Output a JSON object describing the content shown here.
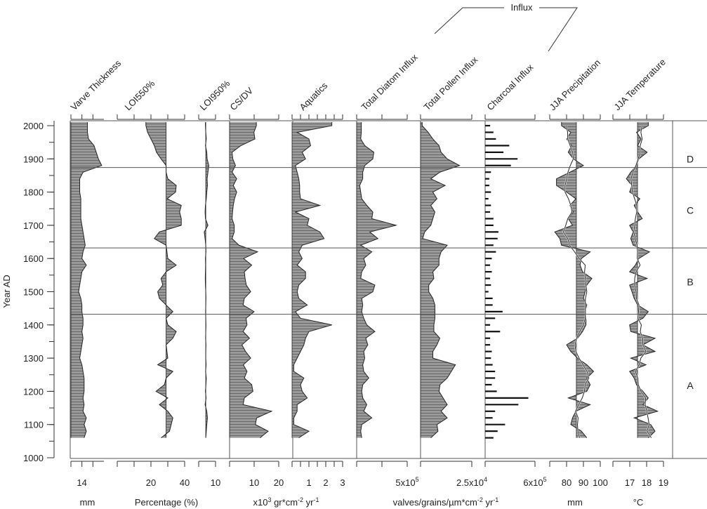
{
  "chart_data": {
    "type": "stratigraphic",
    "y_axis": {
      "label": "Year AD",
      "range": [
        1000,
        2000
      ],
      "ticks": [
        1000,
        1100,
        1200,
        1300,
        1400,
        1500,
        1600,
        1700,
        1800,
        1900,
        2000
      ],
      "minor_step": 50
    },
    "group_label": "Influx",
    "zones": {
      "boundaries": [
        1874,
        1632,
        1432
      ],
      "labels": [
        {
          "name": "D",
          "center": 1900
        },
        {
          "name": "C",
          "center": 1745
        },
        {
          "name": "B",
          "center": 1530
        },
        {
          "name": "A",
          "center": 1218
        }
      ]
    },
    "years": [
      2000,
      1980,
      1960,
      1940,
      1920,
      1900,
      1880,
      1860,
      1840,
      1820,
      1800,
      1780,
      1760,
      1740,
      1720,
      1700,
      1680,
      1660,
      1640,
      1620,
      1600,
      1580,
      1560,
      1540,
      1520,
      1500,
      1480,
      1460,
      1440,
      1420,
      1400,
      1380,
      1360,
      1340,
      1320,
      1300,
      1280,
      1260,
      1240,
      1220,
      1200,
      1180,
      1160,
      1140,
      1120,
      1100,
      1080,
      1060
    ],
    "panels": [
      {
        "title": "Varve Thickness",
        "style": "fill",
        "xlim": [
          13,
          16
        ],
        "ticks": [
          13,
          14,
          15
        ],
        "tick_labels": [
          {
            "value": 14,
            "text": "14"
          }
        ],
        "values": [
          14.5,
          14.5,
          14.6,
          15.1,
          15.3,
          15.5,
          15.8,
          14.1,
          13.8,
          13.8,
          13.8,
          13.9,
          13.9,
          13.9,
          13.9,
          14.0,
          14.1,
          14.2,
          14.3,
          14.1,
          14.0,
          14.4,
          14.0,
          13.9,
          13.8,
          13.7,
          13.9,
          14.0,
          14.0,
          14.1,
          14.1,
          14.0,
          14.1,
          14.0,
          13.9,
          13.8,
          14.0,
          14.1,
          14.2,
          14.2,
          14.2,
          14.1,
          14.2,
          14.1,
          14.4,
          14.2,
          14.4,
          14.2
        ]
      },
      {
        "title": "LOI550%",
        "style": "fill",
        "xlim": [
          0,
          40
        ],
        "baseline": 29,
        "ticks": [
          0,
          10,
          20,
          30,
          40
        ],
        "tick_labels": [
          {
            "value": 20,
            "text": "20"
          },
          {
            "value": 40,
            "text": "40"
          }
        ],
        "values": [
          17,
          18,
          20,
          22,
          23.3,
          26,
          29,
          29,
          30,
          35,
          34.6,
          29.6,
          38,
          37,
          38,
          38,
          25,
          22,
          29,
          29.5,
          30,
          35,
          29,
          26,
          27,
          24,
          25,
          29,
          33,
          29,
          30,
          35,
          33,
          29,
          29.5,
          30,
          24,
          33,
          29,
          28,
          23,
          30,
          25,
          30,
          33,
          32,
          31,
          26
        ]
      },
      {
        "title": "LOI950%",
        "style": "fill",
        "xlim": [
          0,
          10
        ],
        "baseline": 4.2,
        "ticks": [
          0,
          10
        ],
        "tick_labels": [
          {
            "value": 10,
            "text": "10"
          }
        ],
        "values": [
          4.0,
          4.2,
          4.5,
          4.0,
          4.8,
          5.0,
          6.0,
          5.5,
          5.0,
          5.2,
          4.8,
          4.5,
          4.0,
          3.8,
          4.0,
          5.5,
          3.3,
          3.8,
          4.2,
          4.3,
          4.0,
          4.1,
          4.0,
          3.9,
          4.0,
          4.2,
          4.3,
          4.2,
          4.1,
          4.2,
          4.3,
          4.2,
          4.1,
          4.3,
          4.2,
          4.2,
          4.4,
          4.1,
          4.5,
          4.3,
          4.0,
          4.4,
          3.8,
          4.8,
          5.2,
          4.8,
          4.5,
          4.2
        ]
      },
      {
        "title": "CS/DV",
        "style": "fill",
        "xlim": [
          0,
          20
        ],
        "ticks": [
          0,
          10,
          20
        ],
        "tick_labels": [
          {
            "value": 10,
            "text": "10"
          },
          {
            "value": 20,
            "text": "20"
          }
        ],
        "values": [
          10.9,
          9.9,
          10.3,
          4.6,
          1.0,
          1.3,
          2.4,
          1.0,
          2.9,
          1.5,
          2.9,
          2.0,
          1.5,
          1.2,
          1.0,
          1.9,
          1.9,
          1.0,
          3.8,
          11.4,
          5.7,
          9.0,
          6.0,
          6.3,
          6.8,
          8.6,
          6.0,
          5.5,
          10.0,
          6.7,
          7.1,
          5.5,
          8.1,
          5.0,
          6.5,
          8.6,
          5.6,
          7.1,
          6.0,
          9.0,
          9.5,
          6.0,
          5.5,
          17.1,
          11.0,
          10.5,
          15.7,
          12.4
        ]
      },
      {
        "title": "Aquatics",
        "style": "fill",
        "xlim": [
          0,
          3
        ],
        "ticks": [
          0,
          0.5,
          1,
          1.5,
          2,
          2.5,
          3
        ],
        "tick_labels": [
          {
            "value": 1,
            "text": "1"
          },
          {
            "value": 2,
            "text": "2"
          },
          {
            "value": 3,
            "text": "3"
          }
        ],
        "values": [
          2.36,
          0.3,
          1.0,
          1.1,
          0.6,
          0.8,
          0.2,
          0.3,
          0.4,
          0.45,
          0.45,
          0.5,
          1.65,
          0.2,
          1.0,
          0.9,
          1.65,
          1.9,
          0.6,
          0.4,
          0.6,
          0.3,
          0.8,
          0.8,
          0.4,
          0.3,
          0.4,
          0.9,
          0.2,
          0.5,
          2.36,
          1.0,
          0.8,
          0.7,
          0.5,
          0.3,
          0.1,
          0.1,
          0.7,
          0.5,
          0.6,
          0.9,
          0.3,
          0.3,
          0.1,
          0.1,
          1.0,
          0.4
        ]
      },
      {
        "title": "Total Diatom Influx",
        "style": "fill",
        "xlim": [
          0,
          500000
        ],
        "ticks": [
          0,
          250000,
          500000
        ],
        "tick_labels": [
          {
            "value": 500000,
            "text": "5x10",
            "sup": "5"
          }
        ],
        "values": [
          46000,
          46000,
          40000,
          80000,
          170000,
          160000,
          80000,
          60000,
          60000,
          30000,
          40000,
          50000,
          100000,
          160000,
          150000,
          390000,
          130000,
          210000,
          40000,
          150000,
          70000,
          90000,
          50000,
          40000,
          180000,
          160000,
          50000,
          60000,
          50000,
          70000,
          100000,
          180000,
          90000,
          110000,
          70000,
          80000,
          60000,
          70000,
          120000,
          60000,
          50000,
          60000,
          100000,
          70000,
          150000,
          50000,
          40000,
          50000
        ]
      },
      {
        "title": "Total Pollen Influx",
        "style": "fill",
        "xlim": [
          0,
          25000
        ],
        "ticks": [
          0,
          25000
        ],
        "tick_labels": [
          {
            "value": 25000,
            "text": "2.5x10",
            "sup": "4"
          }
        ],
        "values": [
          800,
          3700,
          6000,
          9000,
          10000,
          13000,
          19000,
          9400,
          5000,
          12000,
          6000,
          8000,
          5000,
          7000,
          6000,
          5000,
          2000,
          1000,
          13000,
          10000,
          9000,
          9000,
          6000,
          6500,
          4000,
          4000,
          6000,
          7000,
          7000,
          7000,
          6500,
          6500,
          9400,
          8000,
          6000,
          6000,
          17000,
          15000,
          13000,
          9500,
          9000,
          11000,
          13000,
          10000,
          13000,
          8000,
          8500,
          5000
        ]
      },
      {
        "title": "Charcoal Influx",
        "style": "bar",
        "xlim": [
          0,
          600000
        ],
        "ticks": [
          0,
          600000
        ],
        "tick_labels": [
          {
            "value": 600000,
            "text": "6x10",
            "sup": "5"
          }
        ],
        "values": [
          60000,
          100000,
          130000,
          290000,
          220000,
          390000,
          310000,
          70000,
          50000,
          50000,
          70000,
          40000,
          70000,
          60000,
          100000,
          100000,
          160000,
          150000,
          100000,
          130000,
          80000,
          60000,
          80000,
          60000,
          70000,
          40000,
          90000,
          90000,
          210000,
          120000,
          60000,
          180000,
          60000,
          60000,
          80000,
          70000,
          90000,
          120000,
          120000,
          80000,
          140000,
          520000,
          400000,
          120000,
          90000,
          240000,
          150000,
          100000
        ]
      },
      {
        "title": "JJA Precipitation",
        "style": "anomaly",
        "xlim": [
          70,
          100
        ],
        "baseline": 85.8,
        "ticks": [
          70,
          80,
          90,
          100
        ],
        "tick_labels": [
          {
            "value": 80,
            "text": "80"
          },
          {
            "value": 90,
            "text": "90"
          },
          {
            "value": 100,
            "text": "100"
          }
        ],
        "values": [
          77,
          82.5,
          80,
          83,
          81,
          84,
          90,
          82,
          74,
          74,
          80,
          85.5,
          82,
          84,
          81,
          83.5,
          73,
          76,
          77,
          94,
          88.8,
          88,
          89.5,
          95,
          92,
          91,
          90,
          92,
          91,
          91.5,
          91.5,
          89.5,
          86.5,
          80,
          82.5,
          86.5,
          92,
          96,
          92,
          94,
          92,
          81,
          94,
          85.5,
          83.5,
          82.5,
          88.8,
          92
        ]
      },
      {
        "title": "JJA Temperature",
        "style": "anomaly",
        "xlim": [
          16,
          19
        ],
        "baseline": 17.46,
        "ticks": [
          16,
          17,
          18,
          19
        ],
        "tick_labels": [
          {
            "value": 17,
            "text": "17"
          },
          {
            "value": 18,
            "text": "18"
          },
          {
            "value": 19,
            "text": "19"
          }
        ],
        "values": [
          18.1,
          17.4,
          17.67,
          17.47,
          18.03,
          17.54,
          17.4,
          17.06,
          16.8,
          17.13,
          16.99,
          17.6,
          17.26,
          17.47,
          17.74,
          16.99,
          17.2,
          17.06,
          17.2,
          18.17,
          17.54,
          17.33,
          16.99,
          18.03,
          16.99,
          17.13,
          17.26,
          17.47,
          18.1,
          17.78,
          16.99,
          17.06,
          18.5,
          17.78,
          18.5,
          17.06,
          17.96,
          16.99,
          17.26,
          17.4,
          17.78,
          18.1,
          17.78,
          18.65,
          17.26,
          18.24,
          18.5,
          18.1
        ]
      }
    ],
    "units": [
      {
        "panels": [
          0
        ],
        "segments": [
          {
            "t": "mm"
          }
        ]
      },
      {
        "panels": [
          1,
          2
        ],
        "segments": [
          {
            "t": "Percentage (%)"
          }
        ]
      },
      {
        "panels": [
          3,
          4
        ],
        "segments": [
          {
            "t": "x10"
          },
          {
            "sup": "3"
          },
          {
            "t": " gr*cm"
          },
          {
            "sup": "-2"
          },
          {
            "t": " yr"
          },
          {
            "sup": "-1"
          }
        ]
      },
      {
        "panels": [
          5,
          6,
          7
        ],
        "segments": [
          {
            "t": "valves/grains/µm*cm"
          },
          {
            "sup": "-2"
          },
          {
            "t": " yr"
          },
          {
            "sup": "-1"
          }
        ]
      },
      {
        "panels": [
          8
        ],
        "segments": [
          {
            "t": "mm"
          }
        ]
      },
      {
        "panels": [
          9
        ],
        "segments": [
          {
            "t": "°C"
          }
        ]
      }
    ],
    "colors": {
      "fill": "#9a9a9a",
      "hatch": "#5a5a5a",
      "line": "#222222",
      "frame": "#555555"
    }
  }
}
